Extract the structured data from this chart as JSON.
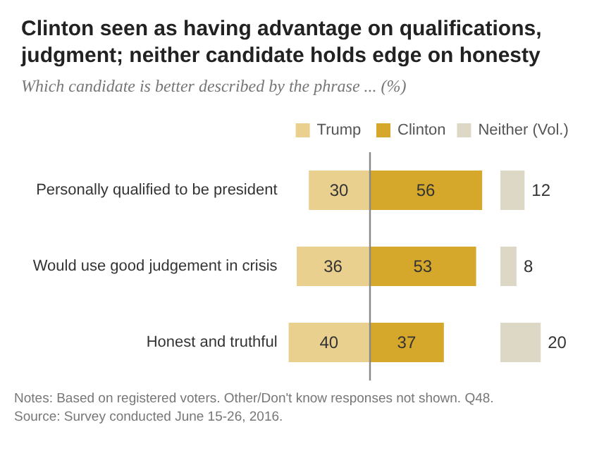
{
  "chart_data": [
    {
      "type": "bar",
      "orientation": "horizontal",
      "title": "Clinton seen as having advantage on qualifications, judgment; neither candidate holds edge on honesty",
      "subtitle": "Which candidate is better described by the phrase ... (%)",
      "categories": [
        "Personally qualified to be president",
        "Would use good judgement in crisis",
        "Honest and truthful"
      ],
      "series": [
        {
          "name": "Trump",
          "color": "#e9d08f",
          "values": [
            30,
            36,
            40
          ]
        }
      ],
      "xlim": [
        40,
        0
      ],
      "data_labels": true,
      "legend": "top",
      "tick_labels": "y",
      "annotations": [
        "Notes: Based on registered voters. Other/Don't know responses not shown. Q48.",
        "Source: Survey conducted June 15-26, 2016."
      ]
    },
    {
      "type": "bar",
      "orientation": "horizontal",
      "categories": [
        null,
        null,
        null
      ],
      "series": [
        {
          "name": "Clinton",
          "color": "#d5a82c",
          "values": [
            56,
            53,
            37
          ]
        }
      ],
      "xlim": [
        0,
        56
      ],
      "ref_lines": [
        {
          "axis": "x",
          "value": 0,
          "color": "#888888"
        }
      ],
      "data_labels": true,
      "legend": "top",
      "tick_labels": false
    },
    {
      "type": "bar",
      "orientation": "horizontal",
      "categories": [
        null,
        null,
        null
      ],
      "series": [
        {
          "name": "Neither (Vol.)",
          "color": "#ddd8c6",
          "values": [
            12,
            8,
            20
          ]
        }
      ],
      "xlim": [
        0,
        20
      ],
      "data_labels": true,
      "legend": "top",
      "tick_labels": false
    }
  ]
}
